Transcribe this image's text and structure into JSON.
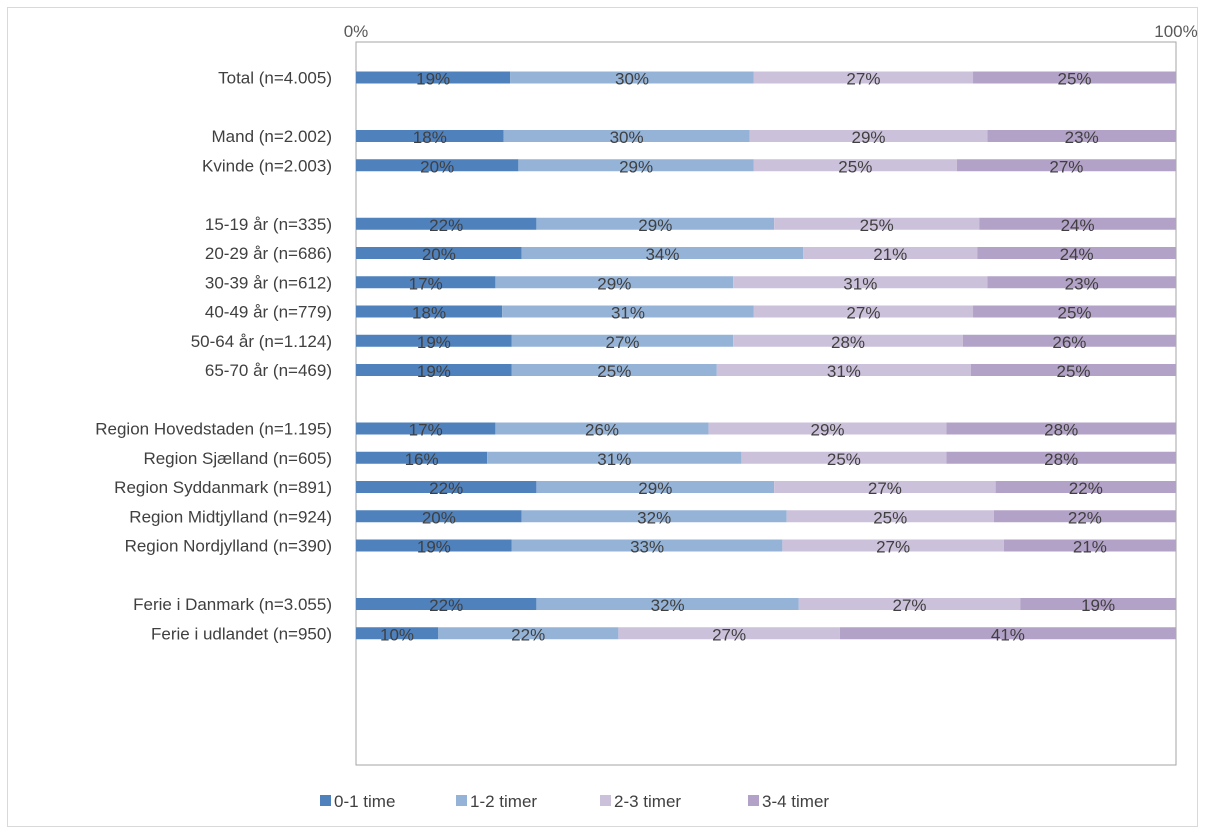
{
  "chart_data": {
    "type": "bar",
    "orientation": "horizontal",
    "stacked": true,
    "percent_stacked": true,
    "x_tick_labels": [
      "0%",
      "100%"
    ],
    "xlim": [
      0,
      100
    ],
    "grid": false,
    "legend_position": "bottom",
    "categories": [
      "Total (n=4.005)",
      "Mand (n=2.002)",
      "Kvinde (n=2.003)",
      "15-19 år (n=335)",
      "20-29 år (n=686)",
      "30-39 år (n=612)",
      "40-49 år (n=779)",
      "50-64 år (n=1.124)",
      "65-70 år (n=469)",
      "Region Hovedstaden (n=1.195)",
      "Region Sjælland (n=605)",
      "Region Syddanmark (n=891)",
      "Region Midtjylland (n=924)",
      "Region Nordjylland (n=390)",
      "Ferie i Danmark (n=3.055)",
      "Ferie i udlandet (n=950)"
    ],
    "groups": [
      [
        0
      ],
      [
        1,
        2
      ],
      [
        3,
        4,
        5,
        6,
        7,
        8
      ],
      [
        9,
        10,
        11,
        12,
        13
      ],
      [
        14,
        15
      ]
    ],
    "series": [
      {
        "name": "0-1 time",
        "color": "#4f81bd",
        "values": [
          19,
          18,
          20,
          22,
          20,
          17,
          18,
          19,
          19,
          17,
          16,
          22,
          20,
          19,
          22,
          10
        ],
        "labels": [
          "19%",
          "18%",
          "20%",
          "22%",
          "20%",
          "17%",
          "18%",
          "19%",
          "19%",
          "17%",
          "16%",
          "22%",
          "20%",
          "19%",
          "22%",
          "10%"
        ]
      },
      {
        "name": "1-2 timer",
        "color": "#95b3d7",
        "values": [
          30,
          30,
          29,
          29,
          34,
          29,
          31,
          27,
          25,
          26,
          31,
          29,
          32,
          33,
          32,
          22
        ],
        "labels": [
          "30%",
          "30%",
          "29%",
          "29%",
          "34%",
          "29%",
          "31%",
          "27%",
          "25%",
          "26%",
          "31%",
          "29%",
          "32%",
          "33%",
          "32%",
          "22%"
        ]
      },
      {
        "name": "2-3 timer",
        "color": "#ccc1da",
        "values": [
          27,
          29,
          25,
          25,
          21,
          31,
          27,
          28,
          31,
          29,
          25,
          27,
          25,
          27,
          27,
          27
        ],
        "labels": [
          "27%",
          "29%",
          "25%",
          "25%",
          "21%",
          "31%",
          "27%",
          "28%",
          "31%",
          "29%",
          "25%",
          "27%",
          "25%",
          "27%",
          "27%",
          "27%"
        ]
      },
      {
        "name": "3-4 timer",
        "color": "#b3a2c7",
        "values": [
          25,
          23,
          27,
          24,
          24,
          23,
          25,
          26,
          25,
          28,
          28,
          22,
          22,
          21,
          19,
          41
        ],
        "labels": [
          "25%",
          "23%",
          "27%",
          "24%",
          "24%",
          "23%",
          "25%",
          "26%",
          "25%",
          "28%",
          "28%",
          "22%",
          "22%",
          "21%",
          "19%",
          "41%"
        ]
      }
    ]
  }
}
